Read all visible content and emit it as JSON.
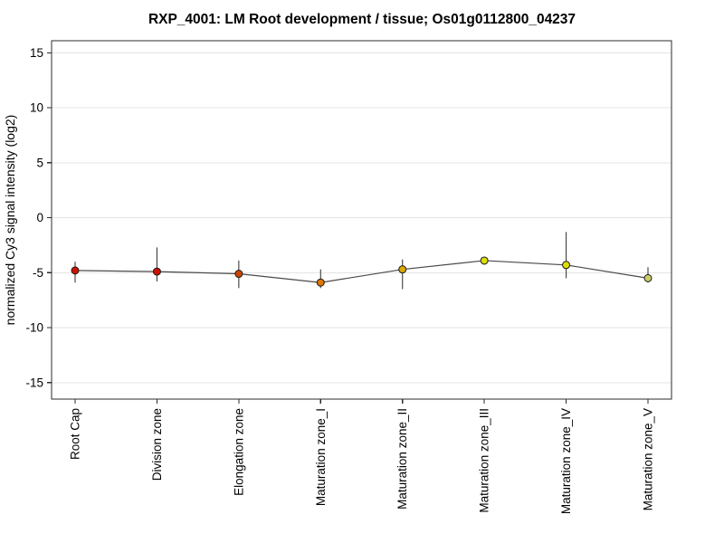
{
  "page": {
    "background": "#ffffff"
  },
  "chart_data": {
    "type": "line",
    "title": "RXP_4001: LM Root development / tissue; Os01g0112800_04237",
    "xlabel": "",
    "ylabel": "normalized Cy3 signal intensity (log2)",
    "categories": [
      "Root Cap",
      "Division zone",
      "Elongation zone",
      "Maturation zone_I",
      "Maturation zone_II",
      "Maturation zone_III",
      "Maturation zone_IV",
      "Maturation zone_V"
    ],
    "series": [
      {
        "name": "normalized Cy3 signal intensity (log2)",
        "values": [
          -4.8,
          -4.9,
          -5.1,
          -5.9,
          -4.7,
          -3.9,
          -4.3,
          -5.5
        ],
        "err_high": [
          -4.0,
          -2.7,
          -3.9,
          -4.7,
          -3.8,
          -3.9,
          -1.3,
          -4.5
        ],
        "err_low": [
          -5.9,
          -5.8,
          -6.4,
          -6.4,
          -6.5,
          -3.9,
          -5.5,
          -5.9
        ],
        "point_colors": [
          "#cc1100",
          "#cc1100",
          "#cd4400",
          "#dd7700",
          "#dda900",
          "#dddd00",
          "#dddd00",
          "#cccc66"
        ]
      }
    ],
    "yticks": [
      -15,
      -10,
      -5,
      0,
      5,
      10,
      15
    ],
    "ylim": [
      -16.5,
      16.1
    ],
    "grid": true,
    "legend": false,
    "colors": {
      "line": "#4a4a4a",
      "errorbar": "#3c3c3c",
      "gridline": "#e4e4e4",
      "axis": "#2b2b2b",
      "marker_outline": "#1a1a1a",
      "text": "#000000"
    }
  }
}
